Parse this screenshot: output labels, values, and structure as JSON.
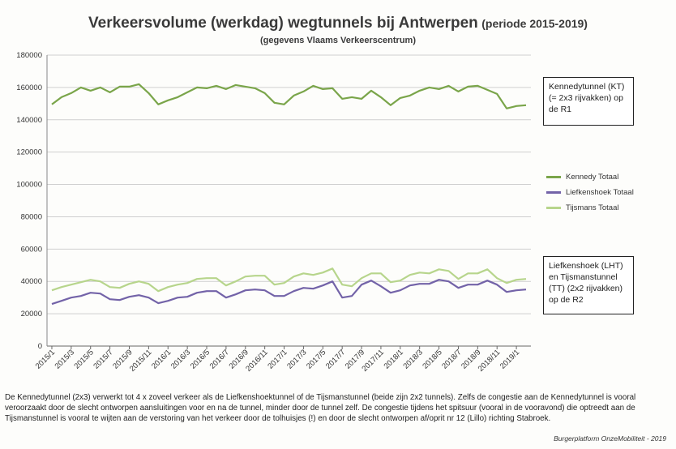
{
  "header": {
    "title": "Verkeersvolume  (werkdag) wegtunnels bij Antwerpen",
    "period": "(periode 2015-2019)",
    "subtitle": "(gegevens Vlaams Verkeerscentrum)"
  },
  "annotations": {
    "kennedy_box": "Kennedytunnel (KT) (= 2x3 rijvakken) op de R1",
    "liefkenshoek_box": "Liefkenshoek (LHT) en Tijsmanstunnel (TT) (2x2 rijvakken) op de R2"
  },
  "caption": "De Kennedytunnel (2x3) verwerkt tot 4 x zoveel verkeer als de Liefkenshoektunnel of de Tijsmanstunnel (beide zijn 2x2 tunnels). Zelfs de congestie aan de Kennedytunnel is vooral veroorzaakt door de slecht ontworpen aansluitingen voor en na de tunnel, minder door de tunnel zelf. De congestie tijdens het spitsuur (vooral in de vooravond) die optreedt aan de Tijsmanstunnel is vooral te wijten aan de verstoring van het verkeer door de tolhuisjes (!) en door de slecht ontworpen af/oprit nr 12 (Lillo) richting Stabroek.",
  "credit": "Burgerplatform OnzeMobiliteit - 2019",
  "chart_data": {
    "type": "line",
    "title": "Verkeersvolume  (werkdag) wegtunnels bij Antwerpen",
    "ylim": [
      0,
      180000
    ],
    "yticks": [
      0,
      20000,
      40000,
      60000,
      80000,
      100000,
      120000,
      140000,
      160000,
      180000
    ],
    "ytick_labels": [
      "0",
      "20000",
      "40000",
      "60000",
      "80000",
      "100000",
      "120000",
      "140000",
      "160000",
      "180000"
    ],
    "xtick_labels": [
      "2015/1",
      "2015/3",
      "2015/5",
      "2015/7",
      "2015/9",
      "2015/11",
      "2016/1",
      "2016/3",
      "2016/5",
      "2016/7",
      "2016/9",
      "2016/11",
      "2017/1",
      "2017/3",
      "2017/5",
      "2017/7",
      "2017/9",
      "2017/11",
      "2018/1",
      "2018/3",
      "2018/5",
      "2018/7",
      "2018/9",
      "2018/11",
      "2019/1"
    ],
    "grid": true,
    "legend_position": "right",
    "x": [
      "2015/1",
      "2015/2",
      "2015/3",
      "2015/4",
      "2015/5",
      "2015/6",
      "2015/7",
      "2015/8",
      "2015/9",
      "2015/10",
      "2015/11",
      "2015/12",
      "2016/1",
      "2016/2",
      "2016/3",
      "2016/4",
      "2016/5",
      "2016/6",
      "2016/7",
      "2016/8",
      "2016/9",
      "2016/10",
      "2016/11",
      "2016/12",
      "2017/1",
      "2017/2",
      "2017/3",
      "2017/4",
      "2017/5",
      "2017/6",
      "2017/7",
      "2017/8",
      "2017/9",
      "2017/10",
      "2017/11",
      "2017/12",
      "2018/1",
      "2018/2",
      "2018/3",
      "2018/4",
      "2018/5",
      "2018/6",
      "2018/7",
      "2018/8",
      "2018/9",
      "2018/10",
      "2018/11",
      "2018/12",
      "2019/1",
      "2019/2"
    ],
    "series": [
      {
        "name": "Kennedy Totaal",
        "color": "#7aa54a",
        "values": [
          149500,
          154000,
          156500,
          160000,
          158000,
          160000,
          157000,
          160500,
          160500,
          162000,
          156500,
          149500,
          152000,
          154000,
          157000,
          160000,
          159500,
          161000,
          159000,
          161500,
          160500,
          159500,
          156500,
          150500,
          149500,
          155000,
          157500,
          161000,
          159000,
          159500,
          153000,
          154000,
          153000,
          158000,
          154000,
          149000,
          153500,
          155000,
          158000,
          160000,
          159000,
          161000,
          157500,
          160500,
          161000,
          158500,
          156000,
          147000,
          148500,
          149000
        ],
        "dashed": false
      },
      {
        "name": "Liefkenshoek Totaal",
        "color": "#7363a8",
        "values": [
          26000,
          28000,
          30000,
          31000,
          33000,
          32500,
          29000,
          28500,
          30500,
          31500,
          30000,
          26500,
          28000,
          30000,
          30500,
          33000,
          34000,
          34000,
          30000,
          32000,
          34500,
          35000,
          34500,
          31000,
          31000,
          34000,
          36000,
          35500,
          37500,
          40000,
          30000,
          31000,
          38000,
          40500,
          37000,
          33000,
          34500,
          37500,
          38500,
          38500,
          41000,
          40000,
          36000,
          38000,
          38000,
          40500,
          38000,
          33500,
          34500,
          35000
        ]
      },
      {
        "name": "Tijsmans Totaal",
        "color": "#b7d58c",
        "values": [
          34500,
          36500,
          38000,
          39500,
          41000,
          40000,
          36500,
          36000,
          38500,
          40000,
          38500,
          34000,
          36500,
          38000,
          39000,
          41500,
          42000,
          42000,
          37500,
          40000,
          43000,
          43500,
          43500,
          38000,
          39000,
          43000,
          45000,
          44000,
          45500,
          48000,
          38000,
          37000,
          42000,
          45000,
          45000,
          39500,
          40500,
          44000,
          45500,
          45000,
          47500,
          46500,
          41500,
          45000,
          45000,
          47500,
          42000,
          39000,
          41000,
          41500
        ]
      }
    ]
  }
}
